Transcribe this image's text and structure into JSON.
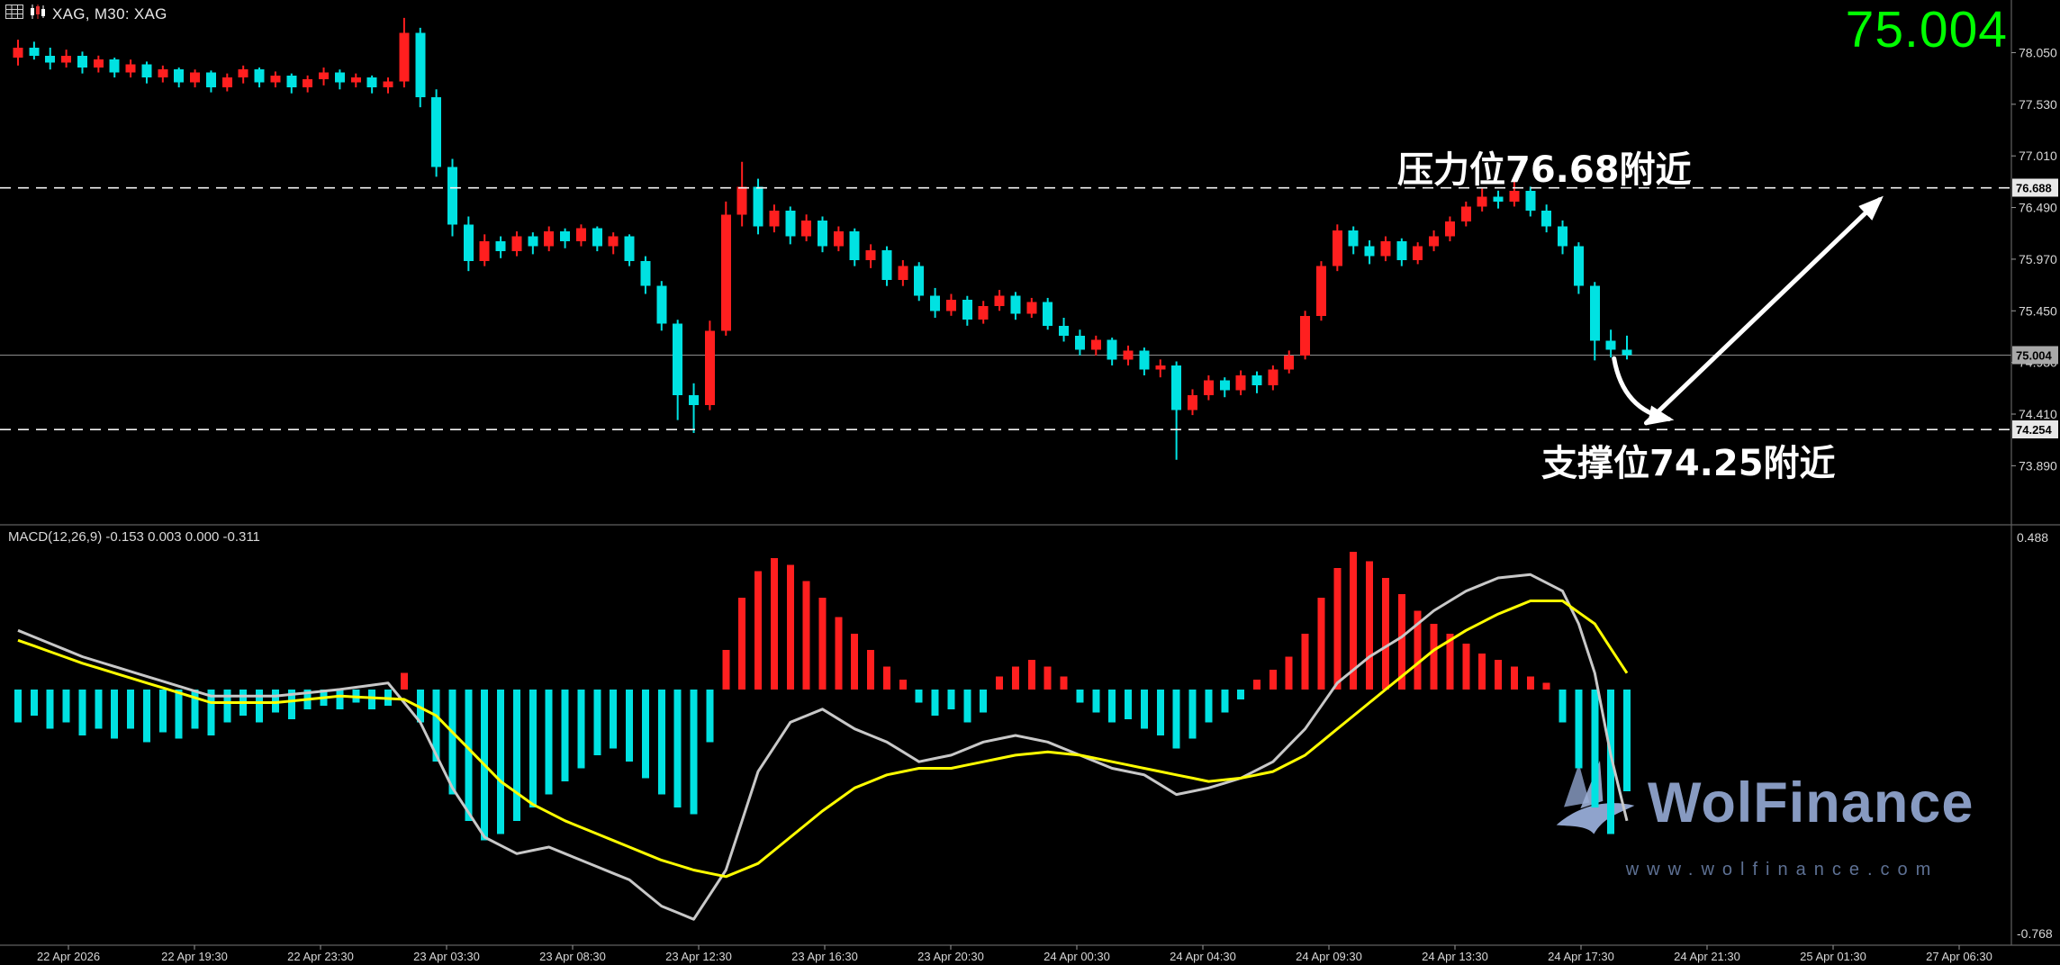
{
  "header": {
    "symbol_label": "XAG, M30: XAG",
    "big_price": "75.004",
    "big_price_color": "#00ff00"
  },
  "macd": {
    "label": "MACD(12,26,9) -0.153 0.003 0.000 -0.311"
  },
  "annotations": {
    "resistance_text": "压力位76.68附近",
    "support_text": "支撑位74.25附近"
  },
  "watermark": {
    "brand": "WolFinance",
    "url": "www.wolfinance.com"
  },
  "axes": {
    "price_labels": [
      "78.050",
      "77.530",
      "77.010",
      "76.490",
      "75.970",
      "75.450",
      "74.930",
      "74.410",
      "73.890"
    ],
    "price_tags": [
      {
        "label": "76.688",
        "style": "level"
      },
      {
        "label": "75.004",
        "style": "current"
      },
      {
        "label": "74.254",
        "style": "level"
      }
    ],
    "macd_labels": [
      {
        "label": "0.488",
        "pos": "top"
      },
      {
        "label": "-0.768",
        "pos": "bottom"
      }
    ],
    "time_labels": [
      "22 Apr 2026",
      "22 Apr 19:30",
      "22 Apr 23:30",
      "23 Apr 03:30",
      "23 Apr 08:30",
      "23 Apr 12:30",
      "23 Apr 16:30",
      "23 Apr 20:30",
      "24 Apr 00:30",
      "24 Apr 04:30",
      "24 Apr 09:30",
      "24 Apr 13:30",
      "24 Apr 17:30",
      "24 Apr 21:30",
      "25 Apr 01:30",
      "27 Apr 06:30"
    ]
  },
  "chart_data": {
    "type": "candlestick",
    "symbol": "XAG",
    "timeframe": "M30",
    "price_axis_range": [
      73.295,
      78.58
    ],
    "levels": {
      "resistance": 76.688,
      "support": 74.254,
      "current_price": 75.004
    },
    "candles": [
      [
        78.0,
        78.18,
        77.92,
        78.1
      ],
      [
        78.1,
        78.16,
        77.98,
        78.02
      ],
      [
        78.02,
        78.1,
        77.88,
        77.95
      ],
      [
        77.95,
        78.08,
        77.9,
        78.02
      ],
      [
        78.02,
        78.06,
        77.84,
        77.9
      ],
      [
        77.9,
        78.02,
        77.85,
        77.98
      ],
      [
        77.98,
        78.0,
        77.8,
        77.85
      ],
      [
        77.85,
        77.98,
        77.8,
        77.93
      ],
      [
        77.93,
        77.96,
        77.74,
        77.8
      ],
      [
        77.8,
        77.92,
        77.75,
        77.88
      ],
      [
        77.88,
        77.9,
        77.7,
        77.75
      ],
      [
        77.75,
        77.88,
        77.7,
        77.85
      ],
      [
        77.85,
        77.87,
        77.65,
        77.7
      ],
      [
        77.7,
        77.84,
        77.66,
        77.8
      ],
      [
        77.8,
        77.92,
        77.74,
        77.88
      ],
      [
        77.88,
        77.9,
        77.7,
        77.75
      ],
      [
        77.75,
        77.86,
        77.7,
        77.82
      ],
      [
        77.82,
        77.84,
        77.64,
        77.7
      ],
      [
        77.7,
        77.82,
        77.65,
        77.78
      ],
      [
        77.78,
        77.9,
        77.72,
        77.85
      ],
      [
        77.85,
        77.88,
        77.68,
        77.75
      ],
      [
        77.75,
        77.84,
        77.7,
        77.8
      ],
      [
        77.8,
        77.82,
        77.64,
        77.7
      ],
      [
        77.7,
        77.8,
        77.64,
        77.76
      ],
      [
        77.76,
        78.4,
        77.7,
        78.25
      ],
      [
        78.25,
        78.3,
        77.5,
        77.6
      ],
      [
        77.6,
        77.68,
        76.8,
        76.9
      ],
      [
        76.9,
        76.98,
        76.2,
        76.32
      ],
      [
        76.32,
        76.4,
        75.85,
        75.95
      ],
      [
        75.95,
        76.22,
        75.9,
        76.15
      ],
      [
        76.15,
        76.2,
        75.98,
        76.05
      ],
      [
        76.05,
        76.25,
        76.0,
        76.2
      ],
      [
        76.2,
        76.24,
        76.02,
        76.1
      ],
      [
        76.1,
        76.3,
        76.05,
        76.25
      ],
      [
        76.25,
        76.28,
        76.08,
        76.15
      ],
      [
        76.15,
        76.32,
        76.1,
        76.28
      ],
      [
        76.28,
        76.3,
        76.05,
        76.1
      ],
      [
        76.1,
        76.24,
        76.02,
        76.2
      ],
      [
        76.2,
        76.22,
        75.9,
        75.95
      ],
      [
        75.95,
        76.0,
        75.62,
        75.7
      ],
      [
        75.7,
        75.75,
        75.25,
        75.32
      ],
      [
        75.32,
        75.36,
        74.35,
        74.6
      ],
      [
        74.6,
        74.72,
        74.22,
        74.5
      ],
      [
        74.5,
        75.35,
        74.45,
        75.25
      ],
      [
        75.25,
        76.55,
        75.2,
        76.42
      ],
      [
        76.42,
        76.95,
        76.3,
        76.7
      ],
      [
        76.7,
        76.78,
        76.22,
        76.3
      ],
      [
        76.3,
        76.52,
        76.24,
        76.46
      ],
      [
        76.46,
        76.5,
        76.12,
        76.2
      ],
      [
        76.2,
        76.42,
        76.15,
        76.36
      ],
      [
        76.36,
        76.4,
        76.04,
        76.1
      ],
      [
        76.1,
        76.3,
        76.05,
        76.25
      ],
      [
        76.25,
        76.28,
        75.9,
        75.96
      ],
      [
        75.96,
        76.12,
        75.88,
        76.06
      ],
      [
        76.06,
        76.1,
        75.7,
        75.76
      ],
      [
        75.76,
        75.96,
        75.7,
        75.9
      ],
      [
        75.9,
        75.94,
        75.55,
        75.6
      ],
      [
        75.6,
        75.68,
        75.38,
        75.45
      ],
      [
        75.45,
        75.62,
        75.4,
        75.56
      ],
      [
        75.56,
        75.6,
        75.3,
        75.36
      ],
      [
        75.36,
        75.55,
        75.32,
        75.5
      ],
      [
        75.5,
        75.66,
        75.45,
        75.6
      ],
      [
        75.6,
        75.64,
        75.36,
        75.42
      ],
      [
        75.42,
        75.58,
        75.38,
        75.54
      ],
      [
        75.54,
        75.58,
        75.26,
        75.3
      ],
      [
        75.3,
        75.38,
        75.14,
        75.2
      ],
      [
        75.2,
        75.26,
        75.0,
        75.06
      ],
      [
        75.06,
        75.2,
        75.0,
        75.16
      ],
      [
        75.16,
        75.18,
        74.9,
        74.96
      ],
      [
        74.96,
        75.1,
        74.9,
        75.05
      ],
      [
        75.05,
        75.08,
        74.8,
        74.86
      ],
      [
        74.86,
        74.96,
        74.78,
        74.9
      ],
      [
        74.9,
        74.94,
        73.95,
        74.45
      ],
      [
        74.45,
        74.66,
        74.4,
        74.6
      ],
      [
        74.6,
        74.8,
        74.55,
        74.75
      ],
      [
        74.75,
        74.78,
        74.58,
        74.65
      ],
      [
        74.65,
        74.85,
        74.6,
        74.8
      ],
      [
        74.8,
        74.84,
        74.62,
        74.7
      ],
      [
        74.7,
        74.9,
        74.65,
        74.86
      ],
      [
        74.86,
        75.05,
        74.82,
        75.0
      ],
      [
        75.0,
        75.45,
        74.96,
        75.4
      ],
      [
        75.4,
        75.95,
        75.35,
        75.9
      ],
      [
        75.9,
        76.32,
        75.85,
        76.26
      ],
      [
        76.26,
        76.3,
        76.02,
        76.1
      ],
      [
        76.1,
        76.16,
        75.92,
        76.0
      ],
      [
        76.0,
        76.2,
        75.95,
        76.15
      ],
      [
        76.15,
        76.18,
        75.9,
        75.96
      ],
      [
        75.96,
        76.14,
        75.92,
        76.1
      ],
      [
        76.1,
        76.26,
        76.05,
        76.2
      ],
      [
        76.2,
        76.4,
        76.15,
        76.35
      ],
      [
        76.35,
        76.55,
        76.3,
        76.5
      ],
      [
        76.5,
        76.68,
        76.45,
        76.6
      ],
      [
        76.6,
        76.66,
        76.48,
        76.55
      ],
      [
        76.55,
        76.75,
        76.5,
        76.66
      ],
      [
        76.66,
        76.7,
        76.4,
        76.46
      ],
      [
        76.46,
        76.52,
        76.24,
        76.3
      ],
      [
        76.3,
        76.36,
        76.02,
        76.1
      ],
      [
        76.1,
        76.14,
        75.62,
        75.7
      ],
      [
        75.7,
        75.74,
        74.95,
        75.15
      ],
      [
        75.15,
        75.26,
        74.98,
        75.06
      ],
      [
        75.06,
        75.2,
        74.96,
        75.004
      ]
    ],
    "macd": {
      "type": "bar+line",
      "value_range": [
        -0.768,
        0.488
      ],
      "histogram": [
        -0.1,
        -0.08,
        -0.12,
        -0.1,
        -0.14,
        -0.12,
        -0.15,
        -0.12,
        -0.16,
        -0.13,
        -0.15,
        -0.12,
        -0.14,
        -0.1,
        -0.08,
        -0.1,
        -0.07,
        -0.09,
        -0.06,
        -0.05,
        -0.06,
        -0.04,
        -0.06,
        -0.05,
        0.05,
        -0.1,
        -0.22,
        -0.32,
        -0.4,
        -0.46,
        -0.44,
        -0.4,
        -0.36,
        -0.32,
        -0.28,
        -0.24,
        -0.2,
        -0.18,
        -0.22,
        -0.27,
        -0.32,
        -0.36,
        -0.38,
        -0.16,
        0.12,
        0.28,
        0.36,
        0.4,
        0.38,
        0.33,
        0.28,
        0.22,
        0.17,
        0.12,
        0.07,
        0.03,
        -0.04,
        -0.08,
        -0.06,
        -0.1,
        -0.07,
        0.04,
        0.07,
        0.09,
        0.07,
        0.04,
        -0.04,
        -0.07,
        -0.1,
        -0.09,
        -0.12,
        -0.14,
        -0.18,
        -0.15,
        -0.1,
        -0.07,
        -0.03,
        0.03,
        0.06,
        0.1,
        0.17,
        0.28,
        0.37,
        0.42,
        0.39,
        0.34,
        0.29,
        0.24,
        0.2,
        0.17,
        0.14,
        0.11,
        0.09,
        0.07,
        0.04,
        0.02,
        -0.1,
        -0.24,
        -0.36,
        -0.44,
        -0.31
      ],
      "macd_line_points": [
        [
          0,
          0.18
        ],
        [
          4,
          0.1
        ],
        [
          8,
          0.04
        ],
        [
          12,
          -0.02
        ],
        [
          16,
          -0.02
        ],
        [
          20,
          0.0
        ],
        [
          23,
          0.02
        ],
        [
          25,
          -0.1
        ],
        [
          27,
          -0.3
        ],
        [
          29,
          -0.45
        ],
        [
          31,
          -0.5
        ],
        [
          33,
          -0.48
        ],
        [
          35,
          -0.52
        ],
        [
          38,
          -0.58
        ],
        [
          40,
          -0.66
        ],
        [
          42,
          -0.7
        ],
        [
          44,
          -0.55
        ],
        [
          46,
          -0.25
        ],
        [
          48,
          -0.1
        ],
        [
          50,
          -0.06
        ],
        [
          52,
          -0.12
        ],
        [
          54,
          -0.16
        ],
        [
          56,
          -0.22
        ],
        [
          58,
          -0.2
        ],
        [
          60,
          -0.16
        ],
        [
          62,
          -0.14
        ],
        [
          64,
          -0.16
        ],
        [
          66,
          -0.2
        ],
        [
          68,
          -0.24
        ],
        [
          70,
          -0.26
        ],
        [
          72,
          -0.32
        ],
        [
          74,
          -0.3
        ],
        [
          76,
          -0.27
        ],
        [
          78,
          -0.22
        ],
        [
          80,
          -0.12
        ],
        [
          82,
          0.02
        ],
        [
          84,
          0.1
        ],
        [
          86,
          0.16
        ],
        [
          88,
          0.24
        ],
        [
          90,
          0.3
        ],
        [
          92,
          0.34
        ],
        [
          94,
          0.35
        ],
        [
          96,
          0.3
        ],
        [
          97,
          0.2
        ],
        [
          98,
          0.05
        ],
        [
          99,
          -0.2
        ],
        [
          100,
          -0.4
        ]
      ],
      "signal_line_points": [
        [
          0,
          0.15
        ],
        [
          4,
          0.08
        ],
        [
          8,
          0.02
        ],
        [
          12,
          -0.04
        ],
        [
          16,
          -0.04
        ],
        [
          20,
          -0.02
        ],
        [
          24,
          -0.03
        ],
        [
          26,
          -0.08
        ],
        [
          28,
          -0.18
        ],
        [
          30,
          -0.28
        ],
        [
          32,
          -0.35
        ],
        [
          34,
          -0.4
        ],
        [
          36,
          -0.44
        ],
        [
          38,
          -0.48
        ],
        [
          40,
          -0.52
        ],
        [
          42,
          -0.55
        ],
        [
          44,
          -0.57
        ],
        [
          46,
          -0.53
        ],
        [
          48,
          -0.45
        ],
        [
          50,
          -0.37
        ],
        [
          52,
          -0.3
        ],
        [
          54,
          -0.26
        ],
        [
          56,
          -0.24
        ],
        [
          58,
          -0.24
        ],
        [
          60,
          -0.22
        ],
        [
          62,
          -0.2
        ],
        [
          64,
          -0.19
        ],
        [
          66,
          -0.2
        ],
        [
          68,
          -0.22
        ],
        [
          70,
          -0.24
        ],
        [
          72,
          -0.26
        ],
        [
          74,
          -0.28
        ],
        [
          76,
          -0.27
        ],
        [
          78,
          -0.25
        ],
        [
          80,
          -0.2
        ],
        [
          82,
          -0.12
        ],
        [
          84,
          -0.04
        ],
        [
          86,
          0.04
        ],
        [
          88,
          0.12
        ],
        [
          90,
          0.18
        ],
        [
          92,
          0.23
        ],
        [
          94,
          0.27
        ],
        [
          96,
          0.27
        ],
        [
          98,
          0.2
        ],
        [
          100,
          0.05
        ]
      ]
    },
    "colors": {
      "bull": "#ff1f1f",
      "bear": "#00e2e2",
      "macd_line": "#c8c8c8",
      "signal_line": "#ffff00",
      "level_line": "#f2f2f2",
      "price_line": "#8c8c8c",
      "separator": "#5f5f5f",
      "axis_text": "#d6d6d6",
      "tag_level": "#e8e8e8",
      "tag_current": "#a8a8a8",
      "arrow": "#ffffff"
    }
  },
  "drawings": {
    "up_arrow": {
      "from": {
        "i": 101.2,
        "price": 74.32
      },
      "to": {
        "i": 115.7,
        "price": 76.57
      }
    },
    "down_arrow": {
      "from": {
        "i": 99.2,
        "price": 74.97
      },
      "to": {
        "i": 102.6,
        "price": 74.36
      }
    }
  }
}
